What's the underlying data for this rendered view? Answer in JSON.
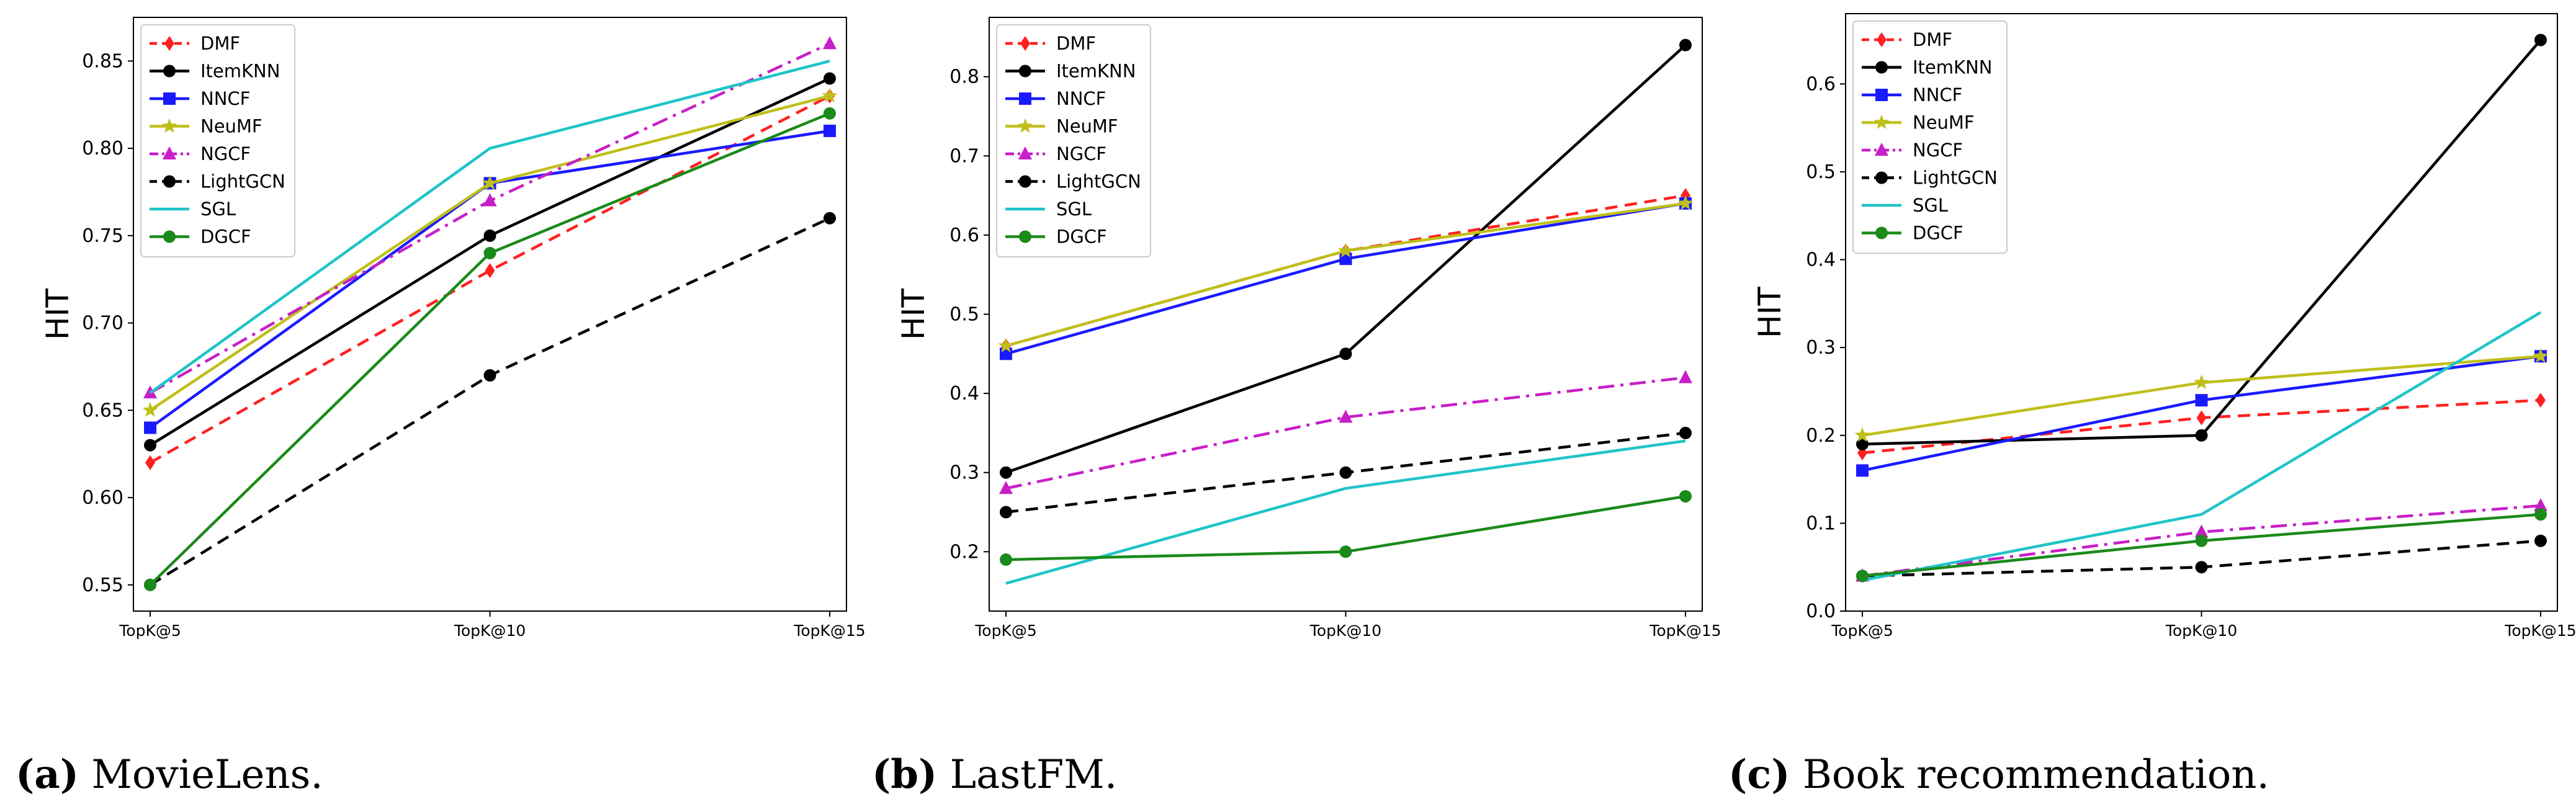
{
  "legend_order": [
    "DMF",
    "ItemKNN",
    "NNCF",
    "NeuMF",
    "NGCF",
    "LightGCN",
    "SGL",
    "DGCF"
  ],
  "series_style": {
    "DMF": {
      "color": "#ff2020",
      "dash": "dashed",
      "marker": "diamond"
    },
    "ItemKNN": {
      "color": "#000000",
      "dash": "solid",
      "marker": "circle"
    },
    "NNCF": {
      "color": "#1a1aff",
      "dash": "solid",
      "marker": "square"
    },
    "NeuMF": {
      "color": "#bfbf1a",
      "dash": "solid",
      "marker": "star"
    },
    "NGCF": {
      "color": "#c81ec8",
      "dash": "dashdot",
      "marker": "triangle"
    },
    "LightGCN": {
      "color": "#000000",
      "dash": "dashed",
      "marker": "circle"
    },
    "SGL": {
      "color": "#1fc4c8",
      "dash": "solid",
      "marker": "none"
    },
    "DGCF": {
      "color": "#1a8a1a",
      "dash": "solid",
      "marker": "circle"
    }
  },
  "chart_data": [
    {
      "type": "line",
      "caption_label": "(a)",
      "caption_text": " MovieLens.",
      "xlabel": "",
      "ylabel": "HIT",
      "categories": [
        "TopK@5",
        "TopK@10",
        "TopK@15"
      ],
      "ylim": [
        0.535,
        0.875
      ],
      "yticks": [
        0.55,
        0.6,
        0.65,
        0.7,
        0.75,
        0.8,
        0.85
      ],
      "ytick_labels": [
        "0.55",
        "0.60",
        "0.65",
        "0.70",
        "0.75",
        "0.80",
        "0.85"
      ],
      "legend_position": "top-left",
      "series": [
        {
          "name": "DMF",
          "values": [
            0.62,
            0.73,
            0.83
          ]
        },
        {
          "name": "ItemKNN",
          "values": [
            0.63,
            0.75,
            0.84
          ]
        },
        {
          "name": "NNCF",
          "values": [
            0.64,
            0.78,
            0.81
          ]
        },
        {
          "name": "NeuMF",
          "values": [
            0.65,
            0.78,
            0.83
          ]
        },
        {
          "name": "NGCF",
          "values": [
            0.66,
            0.77,
            0.86
          ]
        },
        {
          "name": "LightGCN",
          "values": [
            0.55,
            0.67,
            0.76
          ]
        },
        {
          "name": "SGL",
          "values": [
            0.66,
            0.8,
            0.85
          ]
        },
        {
          "name": "DGCF",
          "values": [
            0.55,
            0.74,
            0.82
          ]
        }
      ]
    },
    {
      "type": "line",
      "caption_label": "(b)",
      "caption_text": " LastFM.",
      "xlabel": "",
      "ylabel": "HIT",
      "categories": [
        "TopK@5",
        "TopK@10",
        "TopK@15"
      ],
      "ylim": [
        0.125,
        0.875
      ],
      "yticks": [
        0.2,
        0.3,
        0.4,
        0.5,
        0.6,
        0.7,
        0.8
      ],
      "ytick_labels": [
        "0.2",
        "0.3",
        "0.4",
        "0.5",
        "0.6",
        "0.7",
        "0.8"
      ],
      "legend_position": "top-left",
      "series": [
        {
          "name": "DMF",
          "values": [
            0.46,
            0.58,
            0.65
          ]
        },
        {
          "name": "ItemKNN",
          "values": [
            0.3,
            0.45,
            0.84
          ]
        },
        {
          "name": "NNCF",
          "values": [
            0.45,
            0.57,
            0.64
          ]
        },
        {
          "name": "NeuMF",
          "values": [
            0.46,
            0.58,
            0.64
          ]
        },
        {
          "name": "NGCF",
          "values": [
            0.28,
            0.37,
            0.42
          ]
        },
        {
          "name": "LightGCN",
          "values": [
            0.25,
            0.3,
            0.35
          ]
        },
        {
          "name": "SGL",
          "values": [
            0.16,
            0.28,
            0.34
          ]
        },
        {
          "name": "DGCF",
          "values": [
            0.19,
            0.2,
            0.27
          ]
        }
      ]
    },
    {
      "type": "line",
      "caption_label": "(c)",
      "caption_text": " Book recommendation.",
      "xlabel": "",
      "ylabel": "HIT",
      "categories": [
        "TopK@5",
        "TopK@10",
        "TopK@15"
      ],
      "ylim": [
        0.0,
        0.68
      ],
      "yticks": [
        0.0,
        0.1,
        0.2,
        0.3,
        0.4,
        0.5,
        0.6
      ],
      "ytick_labels": [
        "0.0",
        "0.1",
        "0.2",
        "0.3",
        "0.4",
        "0.5",
        "0.6"
      ],
      "legend_position": "top-left",
      "series": [
        {
          "name": "DMF",
          "values": [
            0.18,
            0.22,
            0.24
          ]
        },
        {
          "name": "ItemKNN",
          "values": [
            0.19,
            0.2,
            0.65
          ]
        },
        {
          "name": "NNCF",
          "values": [
            0.16,
            0.24,
            0.29
          ]
        },
        {
          "name": "NeuMF",
          "values": [
            0.2,
            0.26,
            0.29
          ]
        },
        {
          "name": "NGCF",
          "values": [
            0.04,
            0.09,
            0.12
          ]
        },
        {
          "name": "LightGCN",
          "values": [
            0.04,
            0.05,
            0.08
          ]
        },
        {
          "name": "SGL",
          "values": [
            0.035,
            0.11,
            0.34
          ]
        },
        {
          "name": "DGCF",
          "values": [
            0.04,
            0.08,
            0.11
          ]
        }
      ]
    }
  ]
}
